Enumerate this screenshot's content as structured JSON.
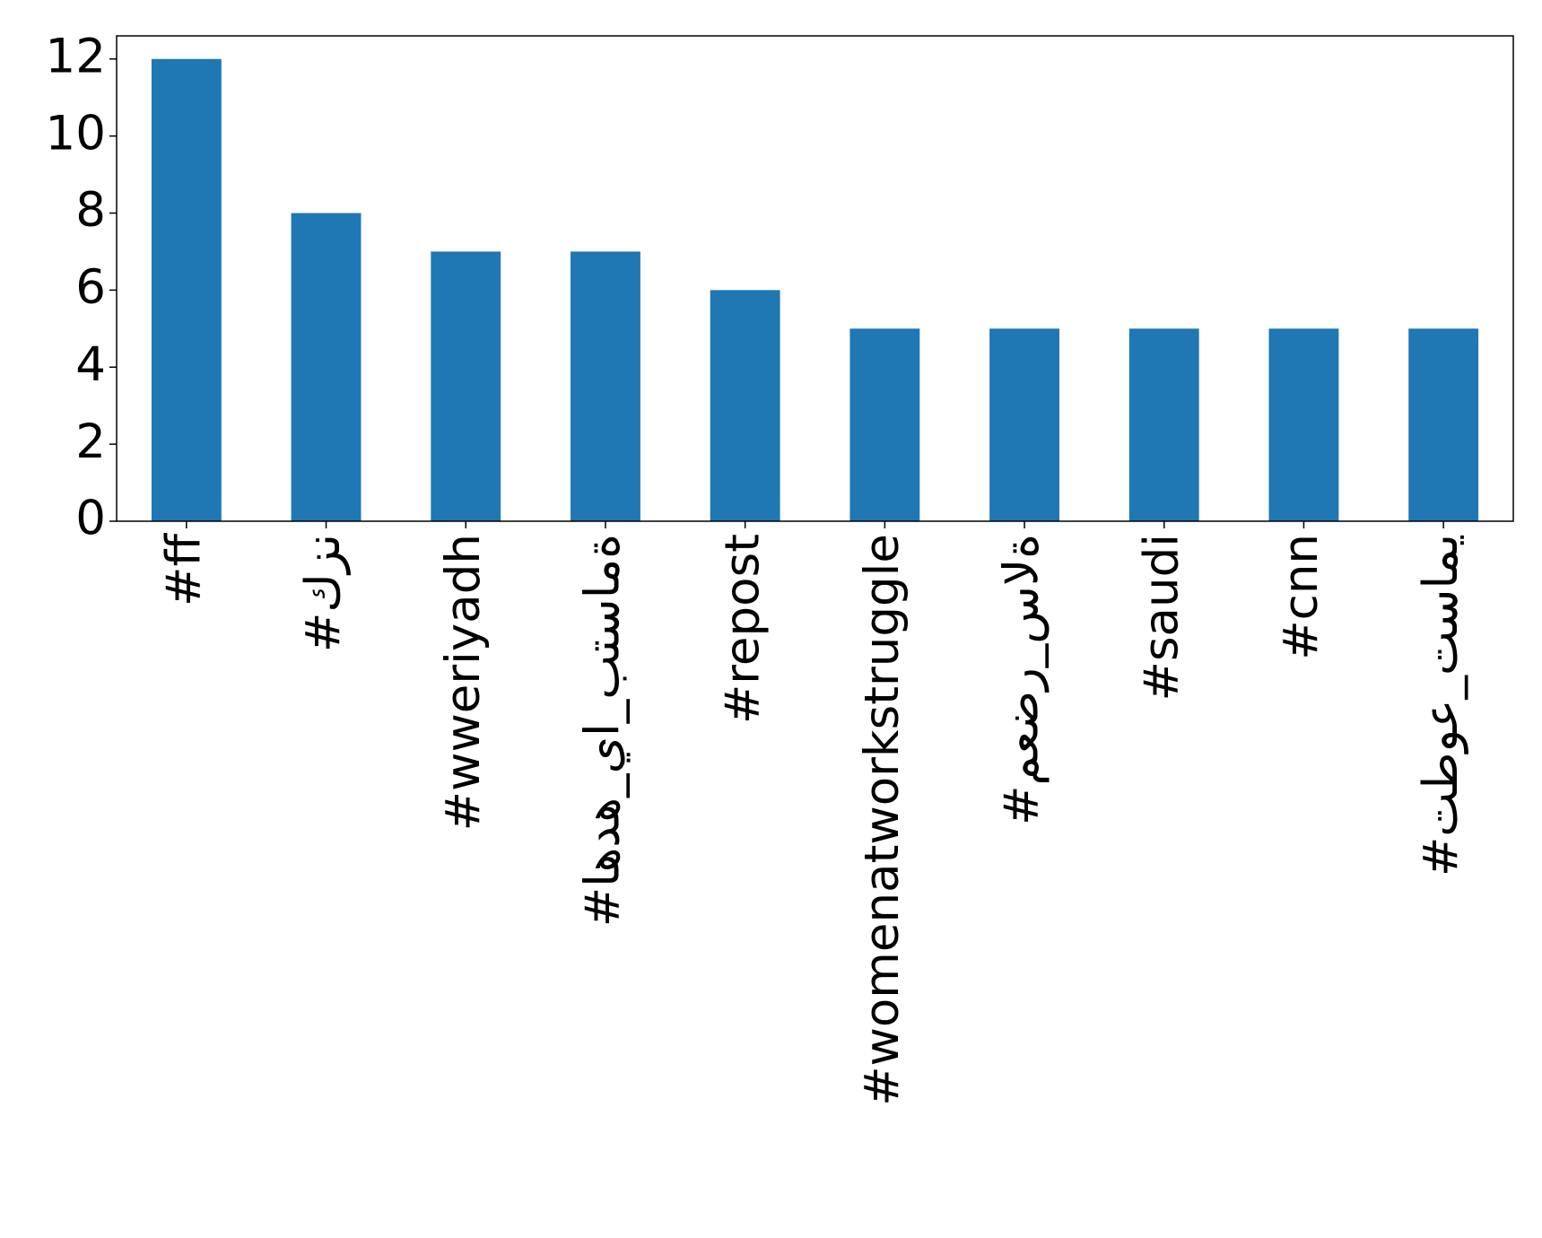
{
  "chart_data": {
    "type": "bar",
    "categories": [
      "#ff",
      "#كزن",
      "#wweriyadh",
      "#اهده_يا_بتسامة",
      "#repost",
      "#womenatworkstruggle",
      "#معضر_سالة",
      "#saudi",
      "#cnn",
      "#تطوع_تسامي"
    ],
    "values": [
      12,
      8,
      7,
      7,
      6,
      5,
      5,
      5,
      5,
      5
    ],
    "color": "#1f77b4",
    "ylim": [
      0,
      12.6
    ],
    "yticks": [
      0,
      2,
      4,
      6,
      8,
      10,
      12
    ],
    "grid": false
  }
}
